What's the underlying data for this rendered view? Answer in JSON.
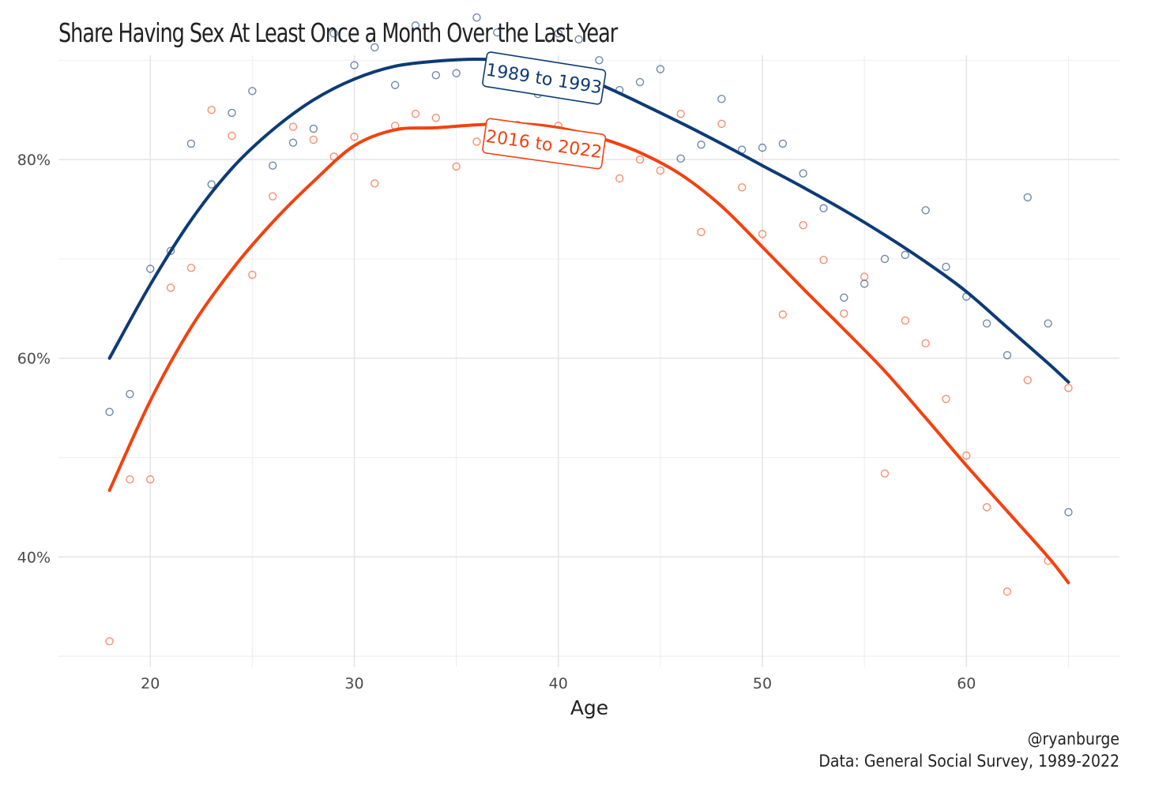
{
  "chart_data": {
    "type": "scatter",
    "title": "Share Having Sex At Least Once a Month Over the Last Year",
    "xlabel": "Age",
    "ylabel": "",
    "xlim": [
      15.5,
      67.5
    ],
    "ylim": [
      28.9,
      90.5
    ],
    "x_ticks": [
      20,
      30,
      40,
      50,
      60
    ],
    "x_tick_labels": [
      "20",
      "30",
      "40",
      "50",
      "60"
    ],
    "y_ticks": [
      40,
      60,
      80
    ],
    "y_tick_labels": [
      "40%",
      "60%",
      "80%"
    ],
    "grid": true,
    "legend": "none",
    "series": [
      {
        "name": "1989 to 1993",
        "color": "#0d3b75",
        "points": [
          [
            18,
            54.6
          ],
          [
            19,
            56.4
          ],
          [
            20,
            69.0
          ],
          [
            21,
            70.8
          ],
          [
            22,
            81.6
          ],
          [
            23,
            77.5
          ],
          [
            24,
            84.7
          ],
          [
            25,
            86.9
          ],
          [
            26,
            79.4
          ],
          [
            27,
            81.7
          ],
          [
            28,
            83.1
          ],
          [
            29,
            92.7
          ],
          [
            30,
            89.5
          ],
          [
            31,
            91.3
          ],
          [
            32,
            87.5
          ],
          [
            33,
            93.5
          ],
          [
            34,
            88.5
          ],
          [
            35,
            88.7
          ],
          [
            36,
            94.3
          ],
          [
            37,
            92.8
          ],
          [
            38,
            87.4
          ],
          [
            39,
            86.6
          ],
          [
            40,
            92.7
          ],
          [
            41,
            92.1
          ],
          [
            42,
            90.0
          ],
          [
            43,
            87.0
          ],
          [
            44,
            87.8
          ],
          [
            45,
            89.1
          ],
          [
            46,
            80.1
          ],
          [
            47,
            81.5
          ],
          [
            48,
            86.1
          ],
          [
            49,
            81.0
          ],
          [
            50,
            81.2
          ],
          [
            51,
            81.6
          ],
          [
            52,
            78.6
          ],
          [
            53,
            75.1
          ],
          [
            54,
            66.1
          ],
          [
            55,
            67.5
          ],
          [
            56,
            70.0
          ],
          [
            57,
            70.4
          ],
          [
            58,
            74.9
          ],
          [
            59,
            69.2
          ],
          [
            60,
            66.2
          ],
          [
            61,
            63.5
          ],
          [
            62,
            60.3
          ],
          [
            63,
            76.2
          ],
          [
            64,
            63.5
          ],
          [
            65,
            44.5
          ]
        ],
        "trend": [
          [
            18,
            60.0
          ],
          [
            20,
            67.4
          ],
          [
            22,
            73.9
          ],
          [
            24,
            79.1
          ],
          [
            26,
            83.0
          ],
          [
            28,
            86.0
          ],
          [
            30,
            88.1
          ],
          [
            32,
            89.4
          ],
          [
            34,
            89.9
          ],
          [
            36,
            90.1
          ],
          [
            38,
            89.9
          ],
          [
            40,
            89.1
          ],
          [
            42,
            87.6
          ],
          [
            44,
            85.7
          ],
          [
            46,
            83.7
          ],
          [
            48,
            81.6
          ],
          [
            50,
            79.4
          ],
          [
            52,
            77.2
          ],
          [
            54,
            74.9
          ],
          [
            56,
            72.4
          ],
          [
            58,
            69.7
          ],
          [
            60,
            66.7
          ],
          [
            62,
            63.1
          ],
          [
            64,
            59.5
          ],
          [
            65,
            57.6
          ]
        ]
      },
      {
        "name": "2016 to 2022",
        "color": "#f2420f",
        "points": [
          [
            18,
            31.5
          ],
          [
            19,
            47.8
          ],
          [
            20,
            47.8
          ],
          [
            21,
            67.1
          ],
          [
            22,
            69.1
          ],
          [
            23,
            85.0
          ],
          [
            24,
            82.4
          ],
          [
            25,
            68.4
          ],
          [
            26,
            76.3
          ],
          [
            27,
            83.3
          ],
          [
            28,
            82.0
          ],
          [
            29,
            80.3
          ],
          [
            30,
            82.3
          ],
          [
            31,
            77.6
          ],
          [
            32,
            83.4
          ],
          [
            33,
            84.6
          ],
          [
            34,
            84.2
          ],
          [
            35,
            79.3
          ],
          [
            36,
            81.8
          ],
          [
            37,
            82.2
          ],
          [
            38,
            83.5
          ],
          [
            39,
            81.8
          ],
          [
            40,
            83.4
          ],
          [
            41,
            82.0
          ],
          [
            42,
            81.0
          ],
          [
            43,
            78.1
          ],
          [
            44,
            80.0
          ],
          [
            45,
            78.9
          ],
          [
            46,
            84.6
          ],
          [
            47,
            72.7
          ],
          [
            48,
            83.6
          ],
          [
            49,
            77.2
          ],
          [
            50,
            72.5
          ],
          [
            51,
            64.4
          ],
          [
            52,
            73.4
          ],
          [
            53,
            69.9
          ],
          [
            54,
            64.5
          ],
          [
            55,
            68.2
          ],
          [
            56,
            48.4
          ],
          [
            57,
            63.8
          ],
          [
            58,
            61.5
          ],
          [
            59,
            55.9
          ],
          [
            60,
            50.2
          ],
          [
            61,
            45.0
          ],
          [
            62,
            36.5
          ],
          [
            63,
            57.8
          ],
          [
            64,
            39.6
          ],
          [
            65,
            57.0
          ]
        ],
        "trend": [
          [
            18,
            46.7
          ],
          [
            20,
            55.7
          ],
          [
            22,
            63.1
          ],
          [
            24,
            68.9
          ],
          [
            26,
            73.7
          ],
          [
            28,
            77.8
          ],
          [
            30,
            81.4
          ],
          [
            32,
            83.0
          ],
          [
            34,
            83.2
          ],
          [
            36,
            83.5
          ],
          [
            38,
            83.6
          ],
          [
            40,
            83.2
          ],
          [
            42,
            82.2
          ],
          [
            44,
            80.7
          ],
          [
            46,
            78.5
          ],
          [
            48,
            75.3
          ],
          [
            50,
            71.2
          ],
          [
            52,
            67.0
          ],
          [
            54,
            62.9
          ],
          [
            56,
            58.7
          ],
          [
            58,
            54.0
          ],
          [
            60,
            49.2
          ],
          [
            62,
            44.6
          ],
          [
            64,
            40.0
          ],
          [
            65,
            37.4
          ]
        ]
      }
    ],
    "annotations": [
      {
        "text": "1989 to 1993",
        "series": 0
      },
      {
        "text": "2016 to 2022",
        "series": 1
      }
    ]
  },
  "caption": {
    "handle": "@ryanburge",
    "source": "Data: General Social Survey, 1989-2022"
  }
}
